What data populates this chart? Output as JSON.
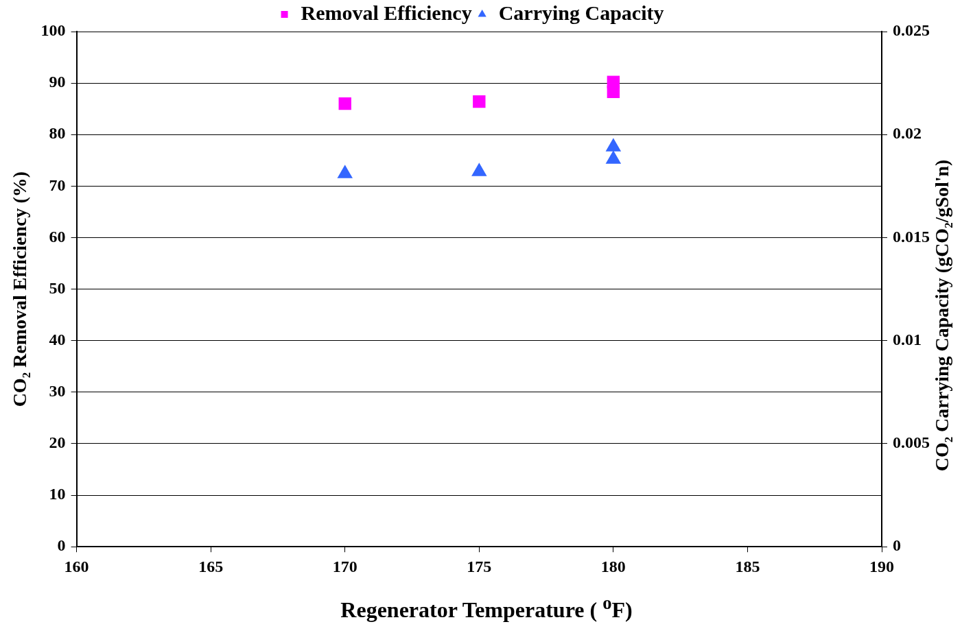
{
  "chart_data": {
    "type": "scatter",
    "xlabel": "Regenerator Temperature ( $^{o}$F)",
    "ylabel": "CO₂ Removal Efficiency (%)",
    "y2label": "CO₂ Carrying Capacity (gCO₂/gSol'n)",
    "xlim": [
      160,
      190
    ],
    "xticks": [
      160,
      165,
      170,
      175,
      180,
      185,
      190
    ],
    "ylim": [
      0,
      100
    ],
    "yticks": [
      0,
      10,
      20,
      30,
      40,
      50,
      60,
      70,
      80,
      90,
      100
    ],
    "y2lim": [
      0,
      0.025
    ],
    "y2ticks": [
      0,
      0.005,
      0.01,
      0.015,
      0.02,
      0.025
    ],
    "grid": "y",
    "legend": "top",
    "series": [
      {
        "name": "Removal Efficiency",
        "color": "#ff00ff",
        "marker": "square",
        "x": [
          170,
          175,
          180,
          180
        ],
        "values": [
          86.0,
          86.4,
          90.2,
          88.3
        ]
      },
      {
        "name": "Carrying Capacity",
        "color": "#3366ff",
        "marker": "triangle",
        "axis": "y2",
        "x": [
          170,
          175,
          180,
          180
        ],
        "values": [
          0.0181,
          0.0182,
          0.0194,
          0.0188
        ]
      }
    ]
  }
}
